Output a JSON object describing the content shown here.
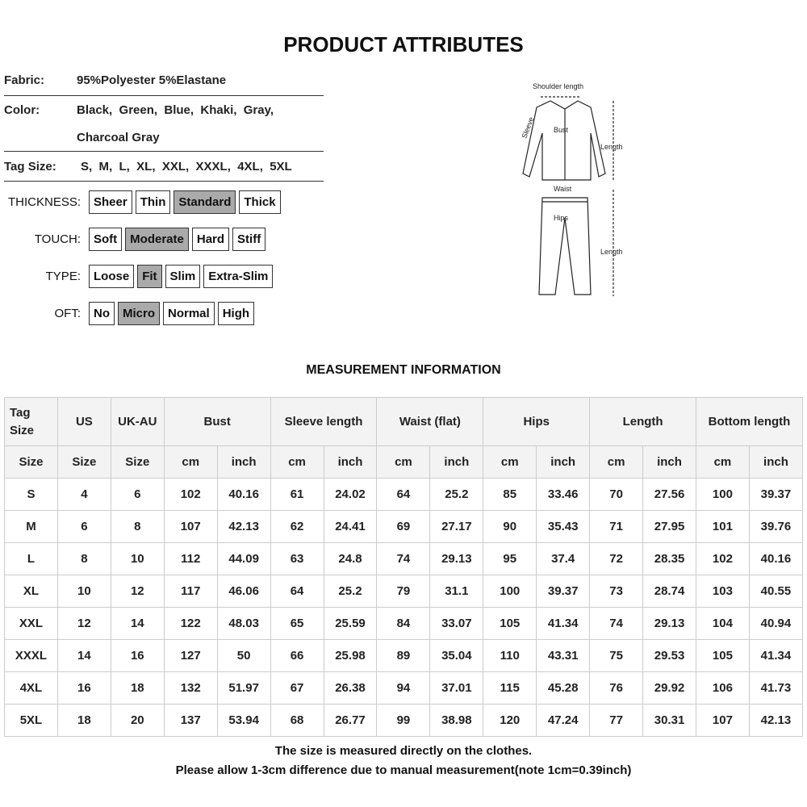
{
  "title": "PRODUCT ATTRIBUTES",
  "attributes": [
    {
      "label": "Fabric:",
      "value": "95%Polyester 5%Elastane"
    },
    {
      "label": "Color:",
      "value": "Black,  Green,  Blue,  Khaki,  Gray,",
      "value2": "Charcoal Gray"
    },
    {
      "label": "Tag Size:",
      "value": "S,  M,  L,  XL,  XXL,  XXXL,  4XL,  5XL"
    }
  ],
  "options": [
    {
      "label": "THICKNESS:",
      "items": [
        "Sheer",
        "Thin",
        "Standard",
        "Thick"
      ],
      "selected": "Standard"
    },
    {
      "label": "TOUCH:",
      "items": [
        "Soft",
        "Moderate",
        "Hard",
        "Stiff"
      ],
      "selected": "Moderate"
    },
    {
      "label": "TYPE:",
      "items": [
        "Loose",
        "Fit",
        "Slim",
        "Extra-Slim"
      ],
      "selected": "Fit"
    },
    {
      "label": "OFT:",
      "items": [
        "No",
        "Micro",
        "Normal",
        "High"
      ],
      "selected": "Micro"
    }
  ],
  "diagram": {
    "shoulder": "Shoulder length",
    "sleeve": "Sleeve",
    "bust": "Bust",
    "length_top": "Length",
    "waist": "Waist",
    "hips": "Hips",
    "length_bottom": "Length"
  },
  "measurement_title": "MEASUREMENT INFORMATION",
  "table": {
    "header1": [
      {
        "t": "Tag Size",
        "span": 1
      },
      {
        "t": "US",
        "span": 1
      },
      {
        "t": "UK-AU",
        "span": 1
      },
      {
        "t": "Bust",
        "span": 2
      },
      {
        "t": "Sleeve length",
        "span": 2
      },
      {
        "t": "Waist  (flat)",
        "span": 2
      },
      {
        "t": "Hips",
        "span": 2
      },
      {
        "t": "Length",
        "span": 2
      },
      {
        "t": "Bottom length",
        "span": 2
      }
    ],
    "header2": [
      "Size",
      "Size",
      "Size",
      "cm",
      "inch",
      "cm",
      "inch",
      "cm",
      "inch",
      "cm",
      "inch",
      "cm",
      "inch",
      "cm",
      "inch"
    ],
    "rows": [
      [
        "S",
        "4",
        "6",
        "102",
        "40.16",
        "61",
        "24.02",
        "64",
        "25.2",
        "85",
        "33.46",
        "70",
        "27.56",
        "100",
        "39.37"
      ],
      [
        "M",
        "6",
        "8",
        "107",
        "42.13",
        "62",
        "24.41",
        "69",
        "27.17",
        "90",
        "35.43",
        "71",
        "27.95",
        "101",
        "39.76"
      ],
      [
        "L",
        "8",
        "10",
        "112",
        "44.09",
        "63",
        "24.8",
        "74",
        "29.13",
        "95",
        "37.4",
        "72",
        "28.35",
        "102",
        "40.16"
      ],
      [
        "XL",
        "10",
        "12",
        "117",
        "46.06",
        "64",
        "25.2",
        "79",
        "31.1",
        "100",
        "39.37",
        "73",
        "28.74",
        "103",
        "40.55"
      ],
      [
        "XXL",
        "12",
        "14",
        "122",
        "48.03",
        "65",
        "25.59",
        "84",
        "33.07",
        "105",
        "41.34",
        "74",
        "29.13",
        "104",
        "40.94"
      ],
      [
        "XXXL",
        "14",
        "16",
        "127",
        "50",
        "66",
        "25.98",
        "89",
        "35.04",
        "110",
        "43.31",
        "75",
        "29.53",
        "105",
        "41.34"
      ],
      [
        "4XL",
        "16",
        "18",
        "132",
        "51.97",
        "67",
        "26.38",
        "94",
        "37.01",
        "115",
        "45.28",
        "76",
        "29.92",
        "106",
        "41.73"
      ],
      [
        "5XL",
        "18",
        "20",
        "137",
        "53.94",
        "68",
        "26.77",
        "99",
        "38.98",
        "120",
        "47.24",
        "77",
        "30.31",
        "107",
        "42.13"
      ]
    ]
  },
  "notes": [
    "The size is measured directly on the clothes.",
    "Please allow 1-3cm difference due to manual measurement(note 1cm=0.39inch)"
  ],
  "colors": {
    "selected_option": "#aaaaaa",
    "header_bg": "#f3f3f3"
  }
}
